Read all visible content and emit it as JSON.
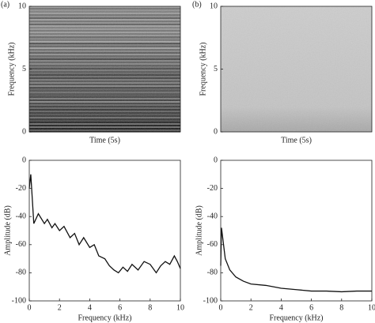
{
  "chart_data": [
    {
      "type": "spectrogram",
      "label": "(a)",
      "x_label": "Time (5s)",
      "y_label": "Frequency (kHz)",
      "ylim": [
        0,
        10
      ],
      "yticks": [
        0,
        5,
        10
      ]
    },
    {
      "type": "spectrogram",
      "label": "(b)",
      "x_label": "Time (5s)",
      "y_label": "Frequency (kHz)",
      "ylim": [
        0,
        10
      ],
      "yticks": [
        0,
        5,
        10
      ]
    },
    {
      "type": "line",
      "x_label": "Frequency (kHz)",
      "y_label": "Amplitude (dB)",
      "color": "#111111",
      "xlim": [
        0,
        10
      ],
      "xticks": [
        0,
        2,
        4,
        6,
        8,
        10
      ],
      "ylim": [
        -100,
        0
      ],
      "yticks": [
        -100,
        -80,
        -60,
        -40,
        -20,
        0
      ],
      "x": [
        0,
        0.1,
        0.3,
        0.6,
        1.0,
        1.2,
        1.5,
        1.7,
        2.0,
        2.3,
        2.7,
        3.0,
        3.3,
        3.6,
        4.0,
        4.3,
        4.6,
        5.0,
        5.3,
        5.6,
        5.9,
        6.2,
        6.5,
        6.8,
        7.2,
        7.6,
        8.0,
        8.4,
        8.7,
        9.0,
        9.3,
        9.6,
        9.8,
        10
      ],
      "values": [
        -20,
        -10,
        -45,
        -38,
        -45,
        -42,
        -48,
        -45,
        -50,
        -47,
        -55,
        -52,
        -60,
        -55,
        -62,
        -60,
        -68,
        -70,
        -75,
        -78,
        -80,
        -76,
        -79,
        -74,
        -78,
        -72,
        -74,
        -80,
        -75,
        -72,
        -74,
        -68,
        -72,
        -77
      ]
    },
    {
      "type": "line",
      "x_label": "Frequency (kHz)",
      "y_label": "Amplitude (dB)",
      "color": "#111111",
      "xlim": [
        0,
        10
      ],
      "xticks": [
        0,
        2,
        4,
        6,
        8,
        10
      ],
      "ylim": [
        -100,
        0
      ],
      "yticks": [
        -100,
        -80,
        -60,
        -40,
        -20,
        0
      ],
      "x": [
        0,
        0.05,
        0.3,
        0.6,
        1.0,
        1.5,
        2.0,
        3.0,
        4.0,
        5.0,
        6.0,
        7.0,
        8.0,
        9.0,
        10
      ],
      "values": [
        -75,
        -48,
        -70,
        -78,
        -83,
        -86,
        -88,
        -89,
        -91,
        -92,
        -93,
        -93,
        -93.5,
        -93,
        -93
      ]
    }
  ]
}
